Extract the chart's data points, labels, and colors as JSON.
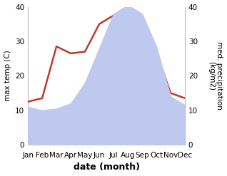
{
  "months": [
    "Jan",
    "Feb",
    "Mar",
    "Apr",
    "May",
    "Jun",
    "Jul",
    "Aug",
    "Sep",
    "Oct",
    "Nov",
    "Dec"
  ],
  "temp": [
    12.5,
    13.5,
    28.5,
    26.5,
    27.0,
    35.0,
    37.5,
    38.0,
    33.5,
    27.0,
    15.0,
    13.5
  ],
  "precip": [
    11.0,
    10.0,
    10.5,
    12.0,
    18.0,
    28.0,
    38.0,
    40.5,
    38.0,
    28.5,
    14.0,
    11.5
  ],
  "temp_color": "#c0392b",
  "precip_fill_color": "#bfc9f0",
  "ylabel_left": "max temp (C)",
  "ylabel_right": "med. precipitation\n(kg/m2)",
  "xlabel": "date (month)",
  "ylim_left": [
    0,
    40
  ],
  "ylim_right": [
    0,
    40
  ],
  "yticks_left": [
    0,
    10,
    20,
    30,
    40
  ],
  "yticks_right": [
    0,
    10,
    20,
    30,
    40
  ],
  "bg_color": "#ffffff",
  "font_size": 7.5,
  "xlabel_font_size": 9,
  "line_width": 1.8
}
